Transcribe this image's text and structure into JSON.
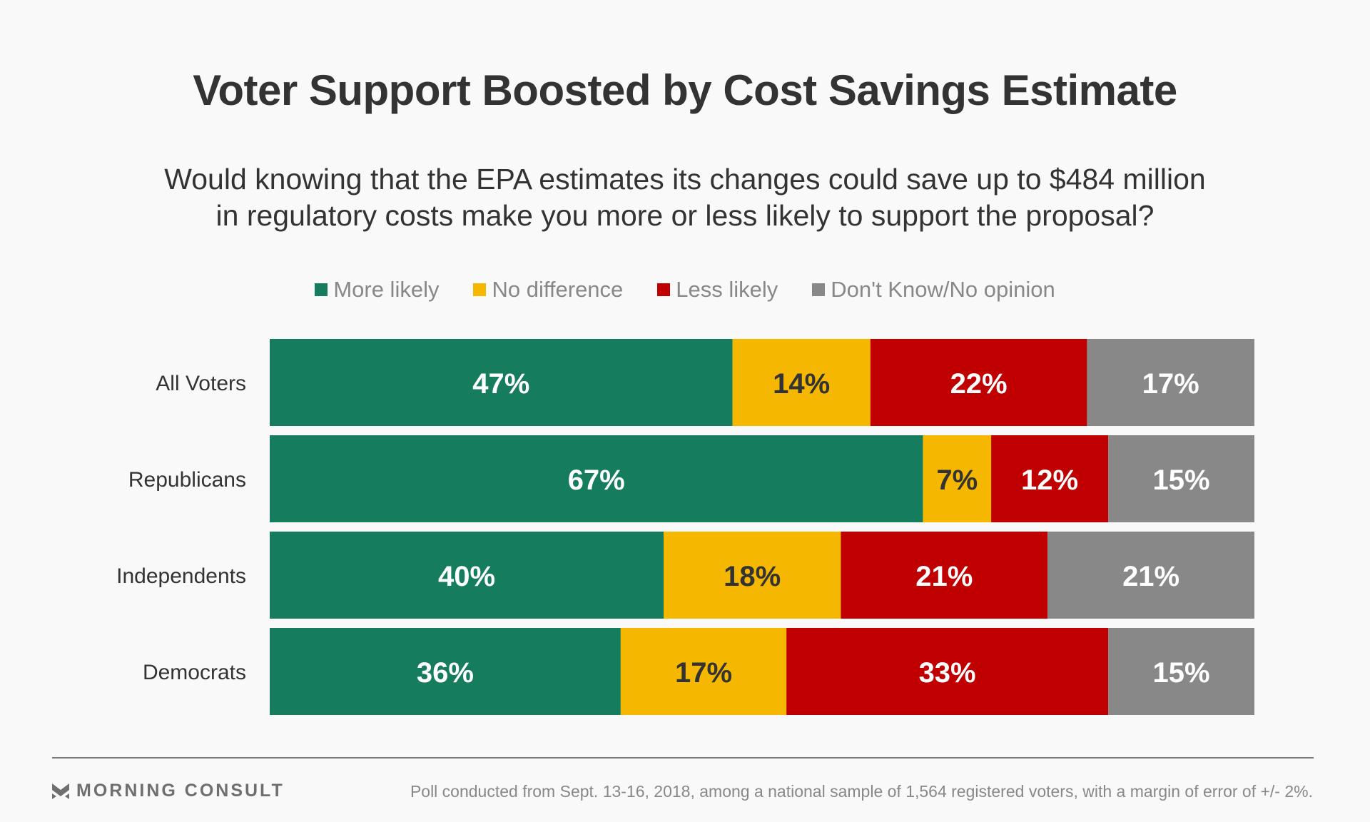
{
  "chart_data": {
    "type": "bar",
    "orientation": "horizontal",
    "stacked": true,
    "title": "Voter Support Boosted by Cost Savings Estimate",
    "subtitle": [
      "Would knowing that the EPA estimates its changes could save up to $484 million",
      "in regulatory costs make you more or less likely to support the proposal?"
    ],
    "categories": [
      "All Voters",
      "Republicans",
      "Independents",
      "Democrats"
    ],
    "series": [
      {
        "name": "More likely",
        "color": "#157c5d",
        "label_color": "#ffffff",
        "values": [
          47,
          67,
          40,
          36
        ]
      },
      {
        "name": "No difference",
        "color": "#f5b700",
        "label_color": "#333333",
        "values": [
          14,
          7,
          18,
          17
        ]
      },
      {
        "name": "Less likely",
        "color": "#c00000",
        "label_color": "#ffffff",
        "values": [
          22,
          12,
          21,
          33
        ]
      },
      {
        "name": "Don't Know/No opinion",
        "color": "#888888",
        "label_color": "#ffffff",
        "values": [
          17,
          15,
          21,
          15
        ]
      }
    ],
    "value_suffix": "%",
    "xlabel": "",
    "ylabel": "",
    "legend_position": "top-center",
    "grid": false
  },
  "footer": {
    "brand": "MORNING CONSULT",
    "note": "Poll conducted from Sept. 13-16, 2018, among a national sample of 1,564 registered voters, with a margin of error of +/- 2%."
  }
}
